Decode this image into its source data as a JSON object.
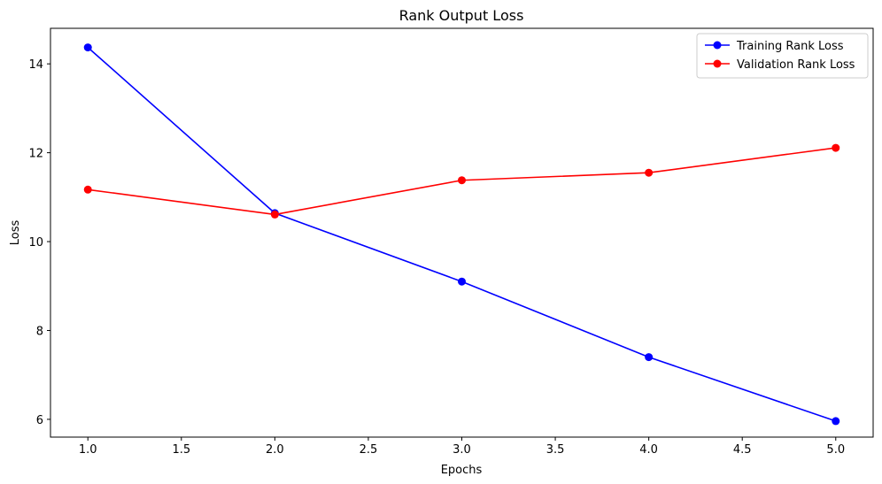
{
  "chart_data": {
    "type": "line",
    "title": "Rank Output Loss",
    "xlabel": "Epochs",
    "ylabel": "Loss",
    "x": [
      1,
      2,
      3,
      4,
      5
    ],
    "xlim": [
      0.8,
      5.2
    ],
    "ylim": [
      5.6,
      14.8
    ],
    "xticks": [
      "1.0",
      "1.5",
      "2.0",
      "2.5",
      "3.0",
      "3.5",
      "4.0",
      "4.5",
      "5.0"
    ],
    "yticks": [
      "6",
      "8",
      "10",
      "12",
      "14"
    ],
    "grid": false,
    "legend_position": "top-right",
    "series": [
      {
        "name": "Training Rank Loss",
        "color": "#0000ff",
        "marker": "circle",
        "values": [
          14.37,
          10.64,
          9.1,
          7.4,
          5.96
        ]
      },
      {
        "name": "Validation Rank Loss",
        "color": "#ff0000",
        "marker": "circle",
        "values": [
          11.17,
          10.61,
          11.38,
          11.55,
          12.11
        ]
      }
    ]
  }
}
